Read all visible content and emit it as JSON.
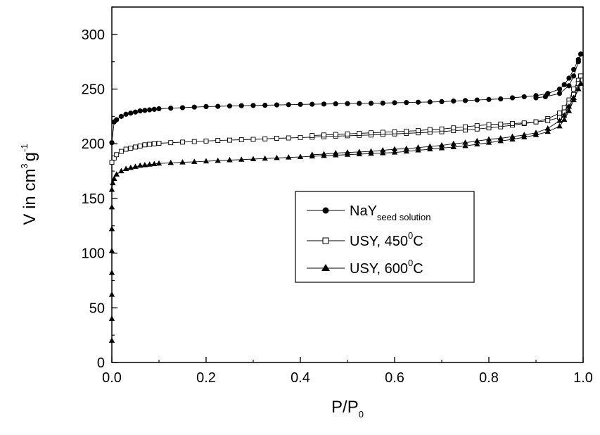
{
  "chart_data": {
    "type": "scatter",
    "xlabel": {
      "main": "P/P",
      "sub": "0"
    },
    "ylabel": {
      "main": "V in cm",
      "sup1": "3",
      "mid": "g",
      "sup2": "-1"
    },
    "xlim": [
      0.0,
      1.0
    ],
    "ylim": [
      0,
      325
    ],
    "x_ticks": [
      "0.0",
      "0.2",
      "0.4",
      "0.6",
      "0.8",
      "1.0"
    ],
    "y_ticks": [
      "0",
      "50",
      "100",
      "150",
      "200",
      "250",
      "300"
    ],
    "legend_placement": "center-right",
    "grid": false,
    "series": [
      {
        "id": "nay",
        "legend": {
          "main": "NaY",
          "sub": "seed solution"
        },
        "marker": "filled-circle",
        "color": "#000000",
        "adsorption": [
          [
            0.0,
            201
          ],
          [
            0.005,
            220
          ],
          [
            0.01,
            222
          ],
          [
            0.02,
            225
          ],
          [
            0.03,
            227
          ],
          [
            0.04,
            228
          ],
          [
            0.05,
            229
          ],
          [
            0.06,
            230
          ],
          [
            0.07,
            230.5
          ],
          [
            0.08,
            231
          ],
          [
            0.09,
            231.5
          ],
          [
            0.1,
            232
          ],
          [
            0.125,
            232.5
          ],
          [
            0.15,
            233
          ],
          [
            0.175,
            233.5
          ],
          [
            0.2,
            234
          ],
          [
            0.225,
            234.2
          ],
          [
            0.25,
            234.5
          ],
          [
            0.275,
            234.8
          ],
          [
            0.3,
            235
          ],
          [
            0.325,
            235.2
          ],
          [
            0.35,
            235.5
          ],
          [
            0.375,
            235.7
          ],
          [
            0.4,
            236
          ],
          [
            0.425,
            236.1
          ],
          [
            0.45,
            236.3
          ],
          [
            0.475,
            236.5
          ],
          [
            0.5,
            236.7
          ],
          [
            0.525,
            236.9
          ],
          [
            0.55,
            237
          ],
          [
            0.575,
            237.2
          ],
          [
            0.6,
            237.5
          ],
          [
            0.625,
            237.7
          ],
          [
            0.65,
            238
          ],
          [
            0.675,
            238.2
          ],
          [
            0.7,
            238.5
          ],
          [
            0.725,
            239
          ],
          [
            0.75,
            239.5
          ],
          [
            0.775,
            240
          ],
          [
            0.8,
            240.5
          ],
          [
            0.825,
            241
          ],
          [
            0.85,
            242
          ],
          [
            0.875,
            243
          ],
          [
            0.9,
            244
          ],
          [
            0.925,
            246
          ],
          [
            0.95,
            250
          ],
          [
            0.96,
            254
          ],
          [
            0.97,
            260
          ],
          [
            0.98,
            268
          ],
          [
            0.99,
            277
          ],
          [
            0.995,
            282
          ]
        ],
        "desorption": [
          [
            0.995,
            282
          ],
          [
            0.99,
            275
          ],
          [
            0.98,
            262
          ],
          [
            0.97,
            253
          ],
          [
            0.95,
            246
          ],
          [
            0.92,
            243
          ],
          [
            0.9,
            242
          ]
        ]
      },
      {
        "id": "usy450",
        "legend": {
          "main": "USY, 450",
          "sup": "0",
          "unit": "C"
        },
        "marker": "open-square",
        "color": "#000000",
        "adsorption": [
          [
            0.0,
            183
          ],
          [
            0.005,
            187
          ],
          [
            0.01,
            190
          ],
          [
            0.02,
            193
          ],
          [
            0.03,
            195
          ],
          [
            0.04,
            196
          ],
          [
            0.05,
            197
          ],
          [
            0.06,
            198
          ],
          [
            0.07,
            199
          ],
          [
            0.08,
            199.5
          ],
          [
            0.09,
            200
          ],
          [
            0.1,
            200.5
          ],
          [
            0.125,
            201
          ],
          [
            0.15,
            201.5
          ],
          [
            0.175,
            202
          ],
          [
            0.2,
            202.5
          ],
          [
            0.225,
            203
          ],
          [
            0.25,
            203.3
          ],
          [
            0.275,
            203.7
          ],
          [
            0.3,
            204
          ],
          [
            0.325,
            204.5
          ],
          [
            0.35,
            205
          ],
          [
            0.375,
            205.3
          ],
          [
            0.4,
            205.7
          ],
          [
            0.425,
            206
          ],
          [
            0.45,
            206.5
          ],
          [
            0.475,
            207
          ],
          [
            0.5,
            207.3
          ],
          [
            0.525,
            207.7
          ],
          [
            0.55,
            208
          ],
          [
            0.575,
            208.5
          ],
          [
            0.6,
            209
          ],
          [
            0.625,
            209.5
          ],
          [
            0.65,
            210
          ],
          [
            0.675,
            210.5
          ],
          [
            0.7,
            211
          ],
          [
            0.725,
            212
          ],
          [
            0.75,
            212.5
          ],
          [
            0.775,
            213.5
          ],
          [
            0.8,
            214.5
          ],
          [
            0.825,
            215.5
          ],
          [
            0.85,
            217
          ],
          [
            0.875,
            218.5
          ],
          [
            0.9,
            220
          ],
          [
            0.925,
            223
          ],
          [
            0.95,
            228
          ],
          [
            0.96,
            233
          ],
          [
            0.97,
            240
          ],
          [
            0.98,
            250
          ],
          [
            0.99,
            258
          ],
          [
            0.995,
            262
          ]
        ],
        "desorption": [
          [
            0.995,
            262
          ],
          [
            0.99,
            255
          ],
          [
            0.98,
            245
          ],
          [
            0.97,
            237
          ],
          [
            0.96,
            229
          ],
          [
            0.95,
            224
          ],
          [
            0.925,
            221
          ],
          [
            0.9,
            220
          ],
          [
            0.875,
            219
          ],
          [
            0.85,
            218.5
          ],
          [
            0.825,
            218
          ],
          [
            0.8,
            217.5
          ],
          [
            0.775,
            216.5
          ],
          [
            0.75,
            215.5
          ],
          [
            0.725,
            214.5
          ],
          [
            0.7,
            213.5
          ],
          [
            0.675,
            213
          ],
          [
            0.65,
            212
          ],
          [
            0.625,
            211.5
          ],
          [
            0.6,
            211
          ],
          [
            0.575,
            210.5
          ],
          [
            0.55,
            210
          ],
          [
            0.525,
            209.5
          ],
          [
            0.5,
            209
          ],
          [
            0.475,
            208.5
          ],
          [
            0.45,
            208
          ],
          [
            0.425,
            207.5
          ]
        ]
      },
      {
        "id": "usy600",
        "legend": {
          "main": "USY, 600",
          "sup": "0",
          "unit": "C"
        },
        "marker": "filled-triangle",
        "color": "#000000",
        "adsorption": [
          [
            0.0,
            20
          ],
          [
            0.0,
            40
          ],
          [
            0.0,
            62
          ],
          [
            0.0,
            82
          ],
          [
            0.0,
            102
          ],
          [
            0.0,
            122
          ],
          [
            0.0,
            142
          ],
          [
            0.0,
            158
          ],
          [
            0.002,
            164
          ],
          [
            0.005,
            168
          ],
          [
            0.01,
            172
          ],
          [
            0.02,
            175
          ],
          [
            0.03,
            177
          ],
          [
            0.04,
            178
          ],
          [
            0.05,
            179
          ],
          [
            0.06,
            180
          ],
          [
            0.07,
            180.5
          ],
          [
            0.08,
            181
          ],
          [
            0.09,
            181.5
          ],
          [
            0.1,
            182
          ],
          [
            0.125,
            182.5
          ],
          [
            0.15,
            183
          ],
          [
            0.175,
            183.5
          ],
          [
            0.2,
            184
          ],
          [
            0.225,
            184.5
          ],
          [
            0.25,
            185
          ],
          [
            0.275,
            185.5
          ],
          [
            0.3,
            186
          ],
          [
            0.325,
            186.5
          ],
          [
            0.35,
            187
          ],
          [
            0.375,
            187.5
          ],
          [
            0.4,
            188
          ],
          [
            0.425,
            188.5
          ],
          [
            0.45,
            189
          ],
          [
            0.475,
            189.5
          ],
          [
            0.5,
            190
          ],
          [
            0.525,
            190.5
          ],
          [
            0.55,
            191
          ],
          [
            0.575,
            191.5
          ],
          [
            0.6,
            192
          ],
          [
            0.625,
            193
          ],
          [
            0.65,
            194
          ],
          [
            0.675,
            195
          ],
          [
            0.7,
            196
          ],
          [
            0.725,
            197
          ],
          [
            0.75,
            198
          ],
          [
            0.775,
            199.5
          ],
          [
            0.8,
            201
          ],
          [
            0.825,
            202.5
          ],
          [
            0.85,
            204
          ],
          [
            0.875,
            206
          ],
          [
            0.9,
            208
          ],
          [
            0.925,
            211
          ],
          [
            0.95,
            216
          ],
          [
            0.96,
            222
          ],
          [
            0.97,
            230
          ],
          [
            0.98,
            240
          ],
          [
            0.99,
            250
          ],
          [
            0.995,
            255
          ]
        ],
        "desorption": [
          [
            0.995,
            255
          ],
          [
            0.99,
            250
          ],
          [
            0.98,
            242
          ],
          [
            0.97,
            234
          ],
          [
            0.96,
            226
          ],
          [
            0.95,
            221
          ],
          [
            0.925,
            214
          ],
          [
            0.9,
            210
          ],
          [
            0.875,
            208
          ],
          [
            0.85,
            206.5
          ],
          [
            0.825,
            205
          ],
          [
            0.8,
            204
          ],
          [
            0.775,
            202.5
          ],
          [
            0.75,
            201
          ],
          [
            0.725,
            200
          ],
          [
            0.7,
            198.5
          ],
          [
            0.675,
            197.5
          ],
          [
            0.65,
            196.5
          ],
          [
            0.625,
            195.5
          ],
          [
            0.6,
            195
          ],
          [
            0.575,
            194
          ],
          [
            0.55,
            193
          ],
          [
            0.525,
            192.5
          ],
          [
            0.5,
            192
          ],
          [
            0.475,
            191.5
          ],
          [
            0.45,
            190.5
          ],
          [
            0.425,
            190
          ]
        ]
      }
    ]
  }
}
